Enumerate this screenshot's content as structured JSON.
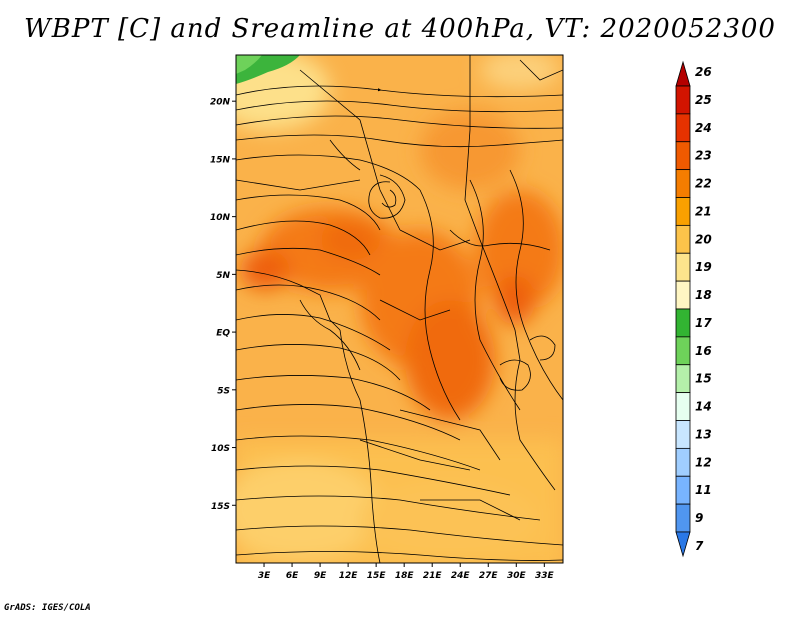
{
  "title": "WBPT [C] and Sreamline at 400hPa, VT: 2020052300",
  "credit": "GrADS: IGES/COLA",
  "map": {
    "lon_range": [
      0,
      35
    ],
    "lat_range": [
      -20,
      24
    ],
    "lat_ticks": [
      {
        "value": 20,
        "label": "20N"
      },
      {
        "value": 15,
        "label": "15N"
      },
      {
        "value": 10,
        "label": "10N"
      },
      {
        "value": 5,
        "label": "5N"
      },
      {
        "value": 0,
        "label": "EQ"
      },
      {
        "value": -5,
        "label": "5S"
      },
      {
        "value": -10,
        "label": "10S"
      },
      {
        "value": -15,
        "label": "15S"
      }
    ],
    "lon_ticks": [
      {
        "value": 3,
        "label": "3E"
      },
      {
        "value": 6,
        "label": "6E"
      },
      {
        "value": 9,
        "label": "9E"
      },
      {
        "value": 12,
        "label": "12E"
      },
      {
        "value": 15,
        "label": "15E"
      },
      {
        "value": 18,
        "label": "18E"
      },
      {
        "value": 21,
        "label": "21E"
      },
      {
        "value": 24,
        "label": "24E"
      },
      {
        "value": 27,
        "label": "27E"
      },
      {
        "value": 30,
        "label": "30E"
      },
      {
        "value": 33,
        "label": "33E"
      }
    ]
  },
  "colorbar": {
    "labels": [
      "26",
      "25",
      "24",
      "23",
      "22",
      "21",
      "20",
      "19",
      "18",
      "17",
      "16",
      "15",
      "14",
      "13",
      "12",
      "11",
      "9",
      "7"
    ],
    "colors": [
      "#b40000",
      "#d21400",
      "#e63200",
      "#f05a00",
      "#f57d00",
      "#f9a000",
      "#fcc34a",
      "#fde48c",
      "#fff6c3",
      "#32b432",
      "#6ed25a",
      "#b4f0aa",
      "#e6fff0",
      "#c8e6ff",
      "#a0ceff",
      "#78b4ff",
      "#5096f0",
      "#2a78e6"
    ]
  }
}
